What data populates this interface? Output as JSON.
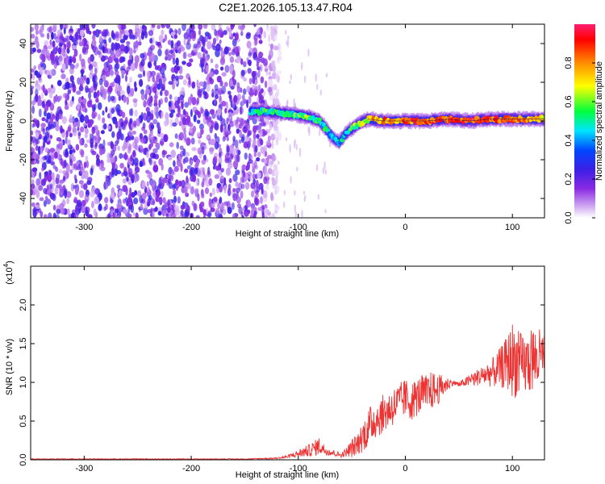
{
  "page": {
    "title": "C2E1.2026.105.13.47.R04"
  },
  "chart_data": [
    {
      "type": "heatmap",
      "title": "C2E1.2026.105.13.47.R04",
      "xlabel": "Height of straight line (km)",
      "ylabel": "Frequency (Hz)",
      "xlim": [
        -350,
        130
      ],
      "ylim": [
        -50,
        50
      ],
      "x_ticks": [
        -300,
        -200,
        -100,
        0,
        100
      ],
      "x_tick_labels": [
        "-300",
        "-200",
        "-100",
        "0",
        "100"
      ],
      "y_ticks": [
        -40,
        -20,
        0,
        20,
        40
      ],
      "y_tick_labels": [
        "-40",
        "-20",
        "0",
        "20",
        "40"
      ],
      "colorbar": {
        "label": "Normalized spectral amplitude",
        "range": [
          0,
          1
        ],
        "ticks": [
          0.0,
          0.2,
          0.4,
          0.6,
          0.8
        ],
        "tick_labels": [
          "0.0",
          "0.2",
          "0.4",
          "0.6",
          "0.8"
        ],
        "colors": [
          "#ffffff",
          "#d8b6f4",
          "#8a2be2",
          "#3b1fe6",
          "#0047ff",
          "#00e5ff",
          "#00ff3c",
          "#ffff00",
          "#ff8c00",
          "#ff0000",
          "#ff1e70"
        ]
      },
      "ridge": {
        "description_points_x": [
          -145,
          -130,
          -115,
          -100,
          -90,
          -80,
          -70,
          -62,
          -55,
          -45,
          -35,
          -20,
          0,
          20,
          40,
          60,
          80,
          100,
          120,
          130
        ],
        "description_points_y": [
          5,
          5,
          4,
          3,
          2,
          0,
          -7,
          -11,
          -6,
          -2,
          1,
          0,
          0,
          0,
          1,
          0,
          1,
          1,
          1,
          1
        ],
        "peak_amplitude": [
          0.45,
          0.5,
          0.5,
          0.55,
          0.55,
          0.5,
          0.45,
          0.4,
          0.45,
          0.55,
          0.7,
          0.8,
          0.85,
          0.85,
          0.85,
          0.9,
          0.85,
          0.85,
          0.8,
          0.75
        ]
      },
      "noise_region_x": [
        -350,
        -140
      ],
      "noise_amplitude": 0.2
    },
    {
      "type": "line",
      "xlabel": "Height of straight line (km)",
      "ylabel": "SNR (10 * v/v)",
      "multiplier_label": "(x10",
      "multiplier_exponent": "4",
      "multiplier_close": ")",
      "xlim": [
        -350,
        130
      ],
      "ylim": [
        0,
        2.5
      ],
      "x_ticks": [
        -300,
        -200,
        -100,
        0,
        100
      ],
      "x_tick_labels": [
        "-300",
        "-200",
        "-100",
        "0",
        "100"
      ],
      "y_ticks": [
        0,
        0.5,
        1.0,
        1.5,
        2.0
      ],
      "y_tick_labels": [
        "0.0",
        "0.5",
        "1.0",
        "1.5",
        "2.0"
      ],
      "line_color": "#ee3333",
      "series": [
        {
          "x": [
            -350,
            -300,
            -250,
            -200,
            -150,
            -120,
            -110,
            -100,
            -90,
            -85,
            -80,
            -75,
            -70,
            -65,
            -60,
            -55,
            -50,
            -45,
            -40,
            -35,
            -30,
            -25,
            -20,
            -15,
            -10,
            -5,
            0,
            5,
            10,
            15,
            20,
            25,
            30,
            35,
            40,
            45,
            50,
            55,
            60,
            65,
            70,
            75,
            80,
            85,
            90,
            95,
            100,
            105,
            110,
            115,
            120,
            125,
            130
          ],
          "values": [
            0.01,
            0.01,
            0.01,
            0.01,
            0.01,
            0.02,
            0.04,
            0.08,
            0.12,
            0.15,
            0.18,
            0.12,
            0.1,
            0.08,
            0.06,
            0.1,
            0.15,
            0.2,
            0.3,
            0.4,
            0.5,
            0.55,
            0.6,
            0.65,
            0.7,
            0.75,
            0.8,
            0.75,
            0.8,
            0.85,
            0.85,
            0.9,
            0.9,
            0.95,
            0.98,
            1.0,
            0.97,
            1.0,
            1.02,
            1.05,
            1.08,
            1.1,
            1.12,
            1.15,
            1.2,
            1.25,
            1.3,
            1.25,
            1.2,
            1.25,
            1.3,
            1.3,
            1.35
          ],
          "noise": [
            0.005,
            0.005,
            0.005,
            0.005,
            0.005,
            0.01,
            0.02,
            0.05,
            0.08,
            0.1,
            0.12,
            0.06,
            0.05,
            0.04,
            0.03,
            0.06,
            0.12,
            0.15,
            0.2,
            0.25,
            0.25,
            0.25,
            0.25,
            0.25,
            0.25,
            0.25,
            0.25,
            0.25,
            0.25,
            0.25,
            0.25,
            0.25,
            0.2,
            0.15,
            0.08,
            0.03,
            0.04,
            0.05,
            0.08,
            0.1,
            0.12,
            0.15,
            0.18,
            0.22,
            0.28,
            0.35,
            0.5,
            0.45,
            0.4,
            0.4,
            0.45,
            0.4,
            0.3
          ]
        }
      ]
    }
  ]
}
